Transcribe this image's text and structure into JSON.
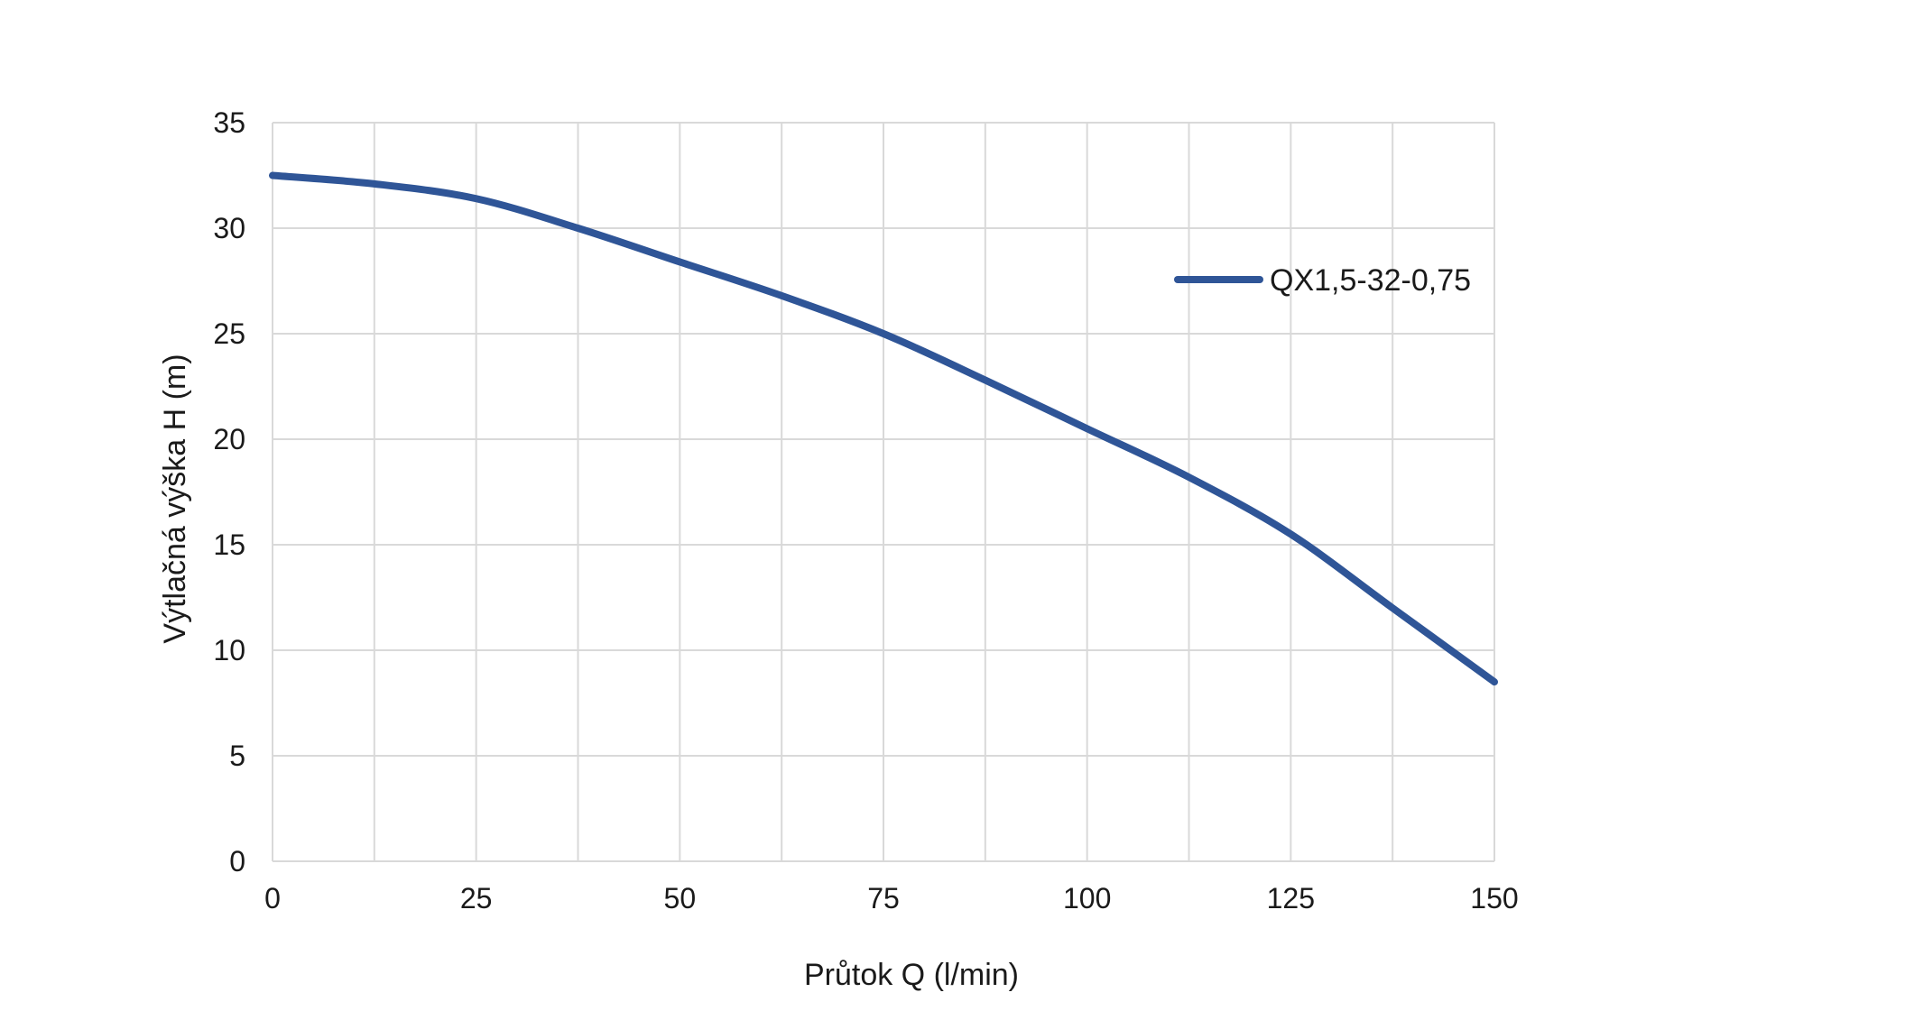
{
  "chart_data": {
    "type": "line",
    "xlabel": "Průtok Q (l/min)",
    "ylabel": "Výtlačná výška H (m)",
    "xlim": [
      0,
      150
    ],
    "ylim": [
      0,
      35
    ],
    "x_ticks": [
      0,
      25,
      50,
      75,
      100,
      125,
      150
    ],
    "x_minor_gridlines": [
      12.5,
      37.5,
      62.5,
      87.5,
      112.5,
      137.5
    ],
    "y_ticks": [
      0,
      5,
      10,
      15,
      20,
      25,
      30,
      35
    ],
    "grid": true,
    "legend_position": "right",
    "series": [
      {
        "name": "QX1,5-32-0,75",
        "color": "#2f5597",
        "x": [
          0,
          12.5,
          25,
          37.5,
          50,
          62.5,
          75,
          87.5,
          100,
          112.5,
          125,
          137.5,
          150
        ],
        "y": [
          32.5,
          32.1,
          31.4,
          30.0,
          28.4,
          26.8,
          25.0,
          22.8,
          20.5,
          18.2,
          15.5,
          12.0,
          8.5
        ]
      }
    ]
  }
}
